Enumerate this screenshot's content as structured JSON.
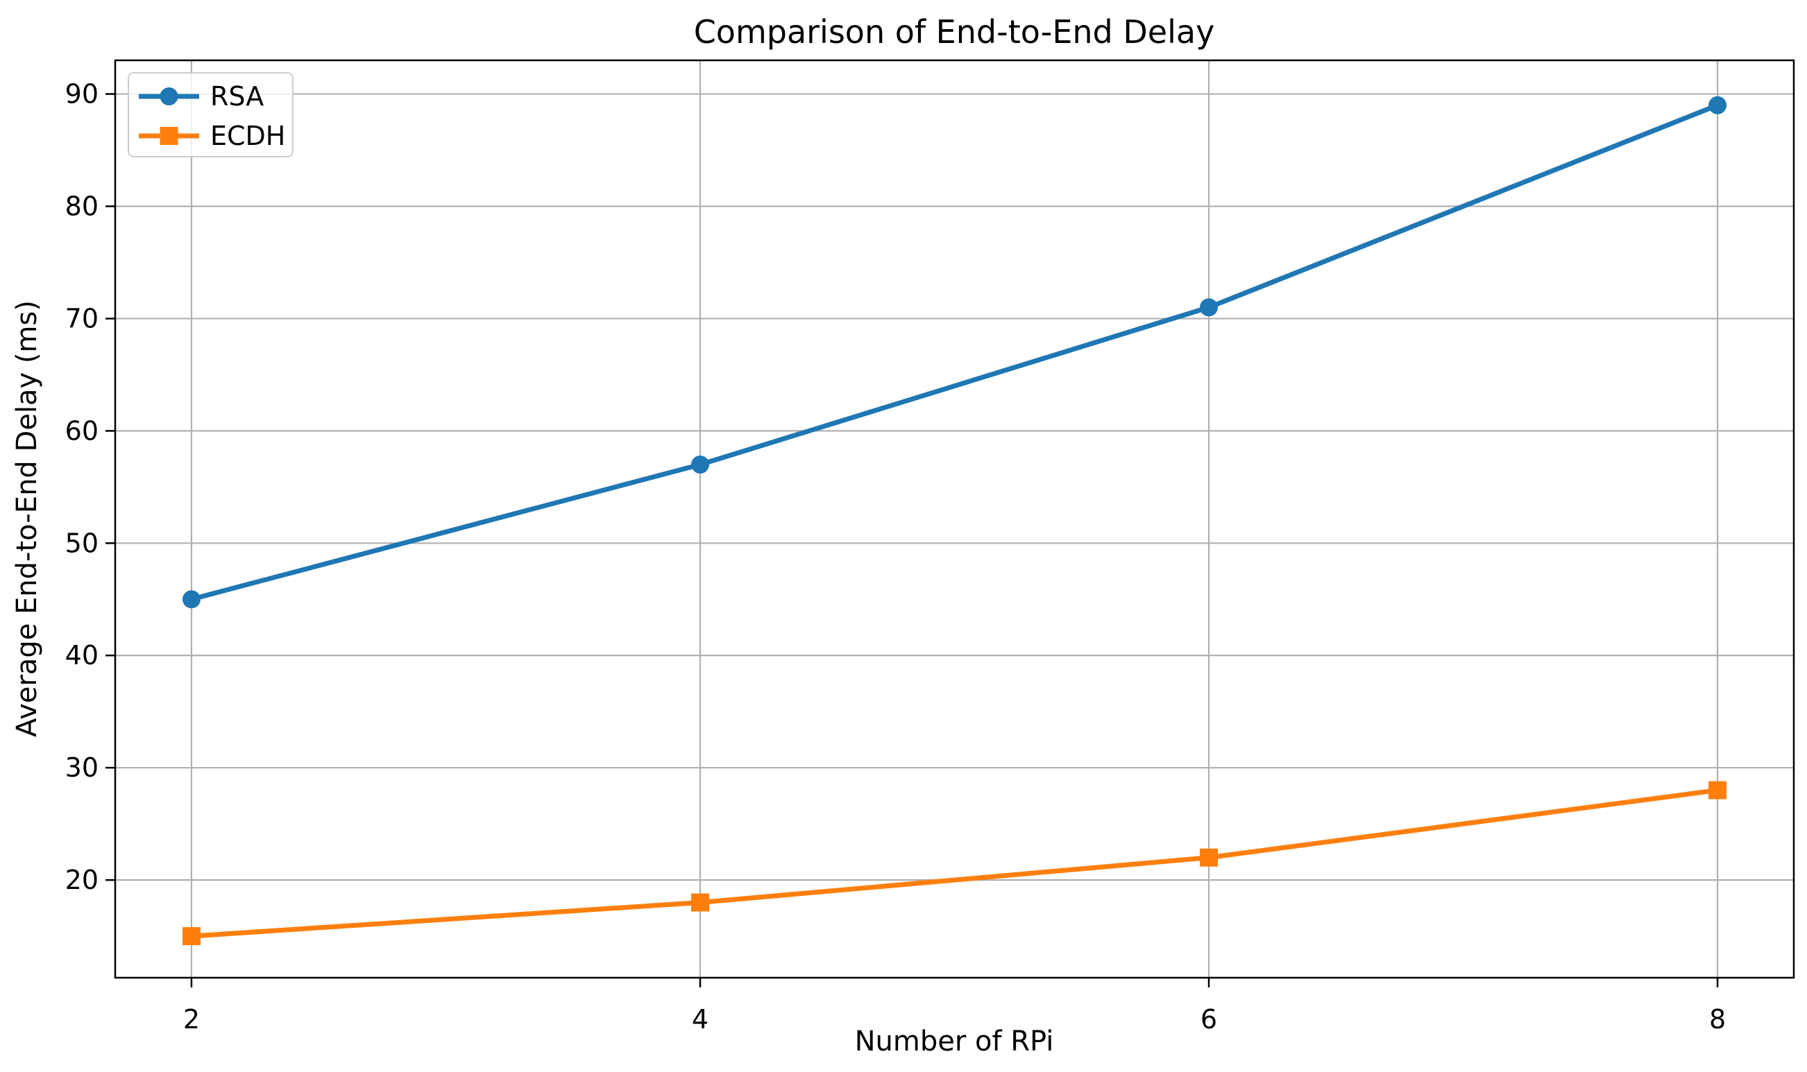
{
  "figure": {
    "background": "#ffffff"
  },
  "chart_data": {
    "type": "line",
    "title": "Comparison of End-to-End Delay",
    "xlabel": "Number of RPi",
    "ylabel": "Average End-to-End Delay (ms)",
    "x": [
      2,
      4,
      6,
      8
    ],
    "series": [
      {
        "name": "RSA",
        "color": "#1f77b4",
        "marker": "circle",
        "values": [
          45,
          57,
          71,
          89
        ]
      },
      {
        "name": "ECDH",
        "color": "#ff7f0e",
        "marker": "square",
        "values": [
          15,
          18,
          22,
          28
        ]
      }
    ],
    "xticks": [
      2,
      4,
      6,
      8
    ],
    "yticks": [
      20,
      30,
      40,
      50,
      60,
      70,
      80,
      90
    ],
    "xlim": [
      1.7,
      8.3
    ],
    "ylim": [
      11.3,
      93.0
    ],
    "grid": true,
    "grid_color": "#b0b0b0",
    "axis_color": "#000000",
    "legend": {
      "position": "upper left",
      "entries": [
        "RSA",
        "ECDH"
      ]
    }
  }
}
